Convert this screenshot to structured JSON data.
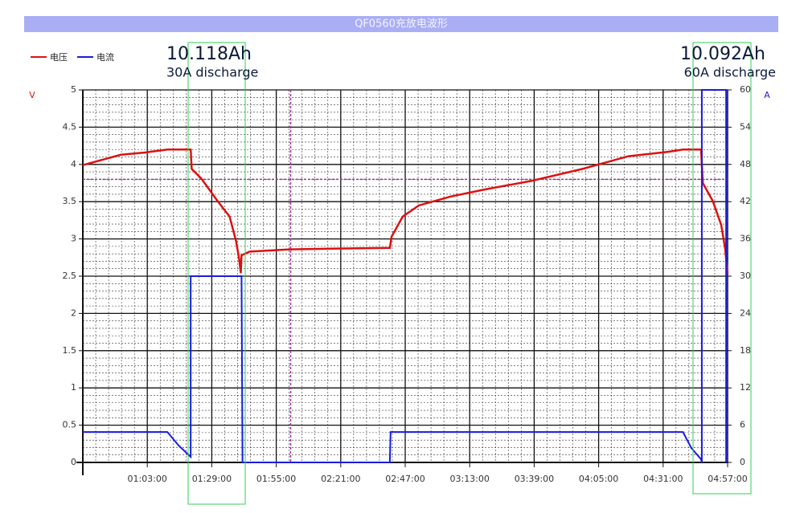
{
  "chart_data": {
    "type": "line",
    "title": "QF0560充放电波形",
    "y_unit": "V",
    "y2_unit": "A",
    "annotations": [
      "10.118Ah",
      "30A discharge",
      "10.092Ah",
      "60A discharge"
    ],
    "series": [
      {
        "name": "电压",
        "color": "#dd1111",
        "axis": "y",
        "x": [
          37,
          52.3,
          62,
          71.1,
          80.5,
          80.9,
          84.8,
          91.3,
          96.2,
          98.8,
          100,
          100.7,
          101,
          104.3,
          120.5,
          140,
          160.8,
          161.5,
          166,
          172.5,
          185.5,
          198.5,
          218,
          238.5,
          257,
          273.3,
          279,
          286.3,
          287,
          291,
          294.4,
          296,
          297
        ],
        "values": [
          3.99,
          4.13,
          4.16,
          4.2,
          4.2,
          3.94,
          3.81,
          3.51,
          3.3,
          2.97,
          2.74,
          2.54,
          2.78,
          2.83,
          2.86,
          2.87,
          2.88,
          3.03,
          3.3,
          3.45,
          3.57,
          3.66,
          3.78,
          3.94,
          4.11,
          4.17,
          4.2,
          4.2,
          3.75,
          3.51,
          3.19,
          2.87,
          2.54
        ]
      },
      {
        "name": "电流",
        "color": "#1a1ae0",
        "axis": "y2",
        "x": [
          37,
          71.1,
          75.7,
          80.5,
          80.5,
          101,
          101.4,
          160.8,
          161.1,
          279,
          282.4,
          286.3,
          286.6,
          286.6,
          296.4,
          296.4
        ],
        "values": [
          4.9,
          4.9,
          2.7,
          0.9,
          30,
          30,
          0,
          0,
          4.9,
          4.9,
          2.3,
          0.5,
          0,
          60,
          60,
          0
        ]
      }
    ],
    "xlim": [
      37,
      297
    ],
    "xticks": [
      {
        "value": 63,
        "label": "01:03:00"
      },
      {
        "value": 89,
        "label": "01:29:00"
      },
      {
        "value": 115,
        "label": "01:55:00"
      },
      {
        "value": 141,
        "label": "02:21:00"
      },
      {
        "value": 167,
        "label": "02:47:00"
      },
      {
        "value": 193,
        "label": "03:13:00"
      },
      {
        "value": 219,
        "label": "03:39:00"
      },
      {
        "value": 245,
        "label": "04:05:00"
      },
      {
        "value": 271,
        "label": "04:31:00"
      },
      {
        "value": 297,
        "label": "04:57:00"
      }
    ],
    "ylim": [
      0,
      5
    ],
    "yticks": [
      0,
      0.5,
      1,
      1.5,
      2,
      2.5,
      3,
      3.5,
      4,
      4.5,
      5
    ],
    "y2lim": [
      0,
      60
    ],
    "y2ticks": [
      0,
      6,
      12,
      18,
      24,
      30,
      36,
      42,
      48,
      54,
      60
    ],
    "grid": true,
    "cursor": {
      "x": 120.8,
      "y": 3.8,
      "color": "#993399"
    }
  }
}
